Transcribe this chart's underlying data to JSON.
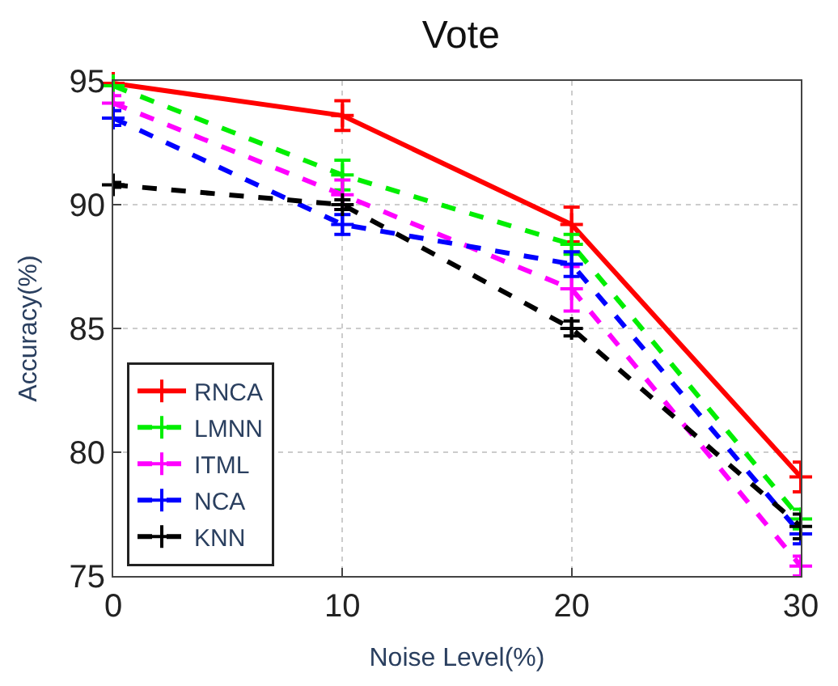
{
  "chart_data": {
    "type": "line",
    "title": "Vote",
    "xlabel": "Noise Level(%)",
    "ylabel": "Accuracy(%)",
    "x": [
      0,
      10,
      20,
      30
    ],
    "series": [
      {
        "name": "RNCA",
        "color": "#ff0000",
        "values": [
          94.9,
          93.6,
          89.2,
          79.0
        ],
        "errors": [
          null,
          0.6,
          0.7,
          0.6
        ],
        "line_style": "solid"
      },
      {
        "name": "LMNN",
        "color": "#00ee00",
        "values": [
          94.8,
          91.2,
          88.4,
          77.3
        ],
        "errors": [
          null,
          0.6,
          0.4,
          0.4
        ],
        "line_style": "dashed"
      },
      {
        "name": "ITML",
        "color": "#ff00ff",
        "values": [
          94.1,
          90.4,
          86.6,
          75.4
        ],
        "errors": [
          0.3,
          0.6,
          0.9,
          0.4
        ],
        "line_style": "dashed"
      },
      {
        "name": "NCA",
        "color": "#0000ff",
        "values": [
          93.5,
          89.2,
          87.6,
          76.7
        ],
        "errors": [
          0.3,
          0.4,
          0.5,
          0.4
        ],
        "line_style": "dashed"
      },
      {
        "name": "KNN",
        "color": "#000000",
        "values": [
          90.8,
          90.0,
          85.0,
          77.0
        ],
        "errors": [
          0.1,
          0.2,
          0.3,
          0.5
        ],
        "line_style": "dashed"
      }
    ],
    "xlim": [
      0,
      30
    ],
    "ylim": [
      75,
      95
    ],
    "xticks": [
      0,
      10,
      20,
      30
    ],
    "yticks": [
      75,
      80,
      85,
      90,
      95
    ],
    "grid": true,
    "legend": "bottom left",
    "marker": "cross"
  }
}
